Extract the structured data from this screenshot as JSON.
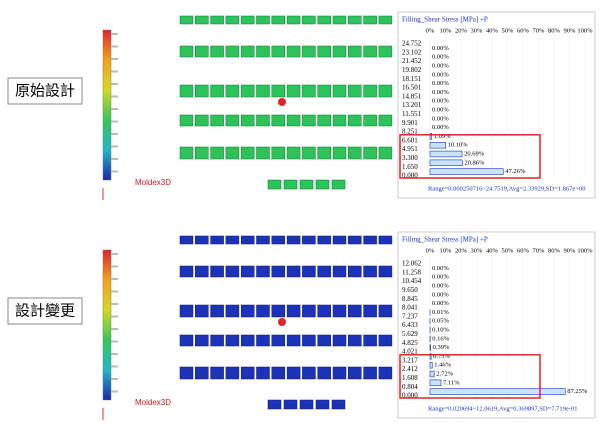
{
  "labels": {
    "original": "原始設計",
    "modified": "設計變更"
  },
  "panels": [
    {
      "logo": "Moldex3D",
      "title": "Filling_Shear Stress [MPa] +P",
      "xlim": [
        0,
        100
      ],
      "xticks": [
        {
          "value": 0,
          "label": "0%"
        },
        {
          "value": 10,
          "label": "10%"
        },
        {
          "value": 20,
          "label": "20%"
        },
        {
          "value": 30,
          "label": "30%"
        },
        {
          "value": 40,
          "label": "40%"
        },
        {
          "value": 50,
          "label": "50%"
        },
        {
          "value": 60,
          "label": "60%"
        },
        {
          "value": 70,
          "label": "70%"
        },
        {
          "value": 80,
          "label": "80%"
        },
        {
          "value": 90,
          "label": "90%"
        },
        {
          "value": 100,
          "label": "100%"
        }
      ],
      "bin_edges": [
        "24.752",
        "23.102",
        "21.452",
        "19.802",
        "18.151",
        "16.501",
        "14.851",
        "13.201",
        "11.551",
        "9.901",
        "8.251",
        "6.601",
        "4.951",
        "3.300",
        "1.650",
        "0.000"
      ],
      "values": [
        0,
        0,
        0,
        0,
        0,
        0,
        0,
        0,
        0,
        0,
        1.09,
        10.1,
        20.69,
        20.86,
        47.26
      ],
      "value_labels": [
        "0.00%",
        "0.00%",
        "0.00%",
        "0.00%",
        "0.00%",
        "0.00%",
        "0.00%",
        "0.00%",
        "0.00%",
        "0.00%",
        "1.09%",
        "10.10%",
        "20.69%",
        "20.86%",
        "47.26%"
      ],
      "range_text": "Range=0.000250716~24.7519,Avg=2.33929,SD=1.867e+00"
    },
    {
      "logo": "Moldex3D",
      "title": "Filling_Shear Stress [MPa] +P",
      "xlim": [
        0,
        100
      ],
      "xticks": [
        {
          "value": 0,
          "label": "0%"
        },
        {
          "value": 10,
          "label": "10%"
        },
        {
          "value": 20,
          "label": "20%"
        },
        {
          "value": 30,
          "label": "30%"
        },
        {
          "value": 40,
          "label": "40%"
        },
        {
          "value": 50,
          "label": "50%"
        },
        {
          "value": 60,
          "label": "60%"
        },
        {
          "value": 70,
          "label": "70%"
        },
        {
          "value": 80,
          "label": "80%"
        },
        {
          "value": 90,
          "label": "90%"
        },
        {
          "value": 100,
          "label": "100%"
        }
      ],
      "bin_edges": [
        "12.062",
        "11.258",
        "10.454",
        "9.650",
        "8.845",
        "8.041",
        "7.237",
        "6.433",
        "5.629",
        "4.825",
        "4.021",
        "3.217",
        "2.412",
        "1.608",
        "0.804",
        "0.000"
      ],
      "values": [
        0,
        0,
        0,
        0,
        0,
        0.01,
        0.05,
        0.1,
        0.16,
        0.39,
        0.75,
        1.46,
        2.72,
        7.11,
        87.25
      ],
      "value_labels": [
        "0.00%",
        "0.00%",
        "0.00%",
        "0.00%",
        "0.00%",
        "0.01%",
        "0.05%",
        "0.10%",
        "0.16%",
        "0.39%",
        "0.75%",
        "1.46%",
        "2.72%",
        "7.11%",
        "87.25%"
      ],
      "range_text": "Range=0.020694~12.0619,Avg=0.369897,SD=7.719e-01"
    }
  ]
}
